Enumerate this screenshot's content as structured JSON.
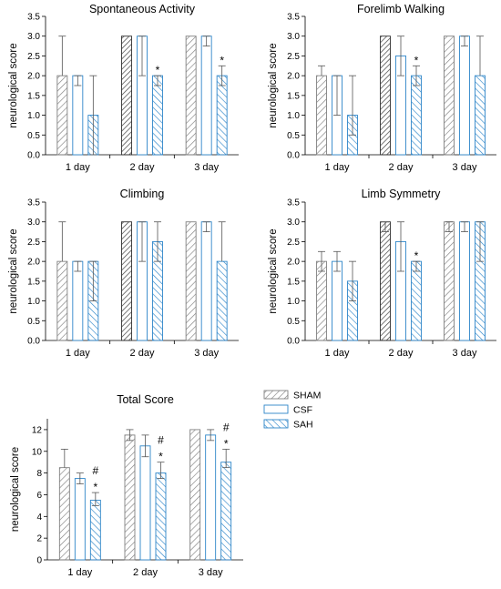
{
  "legend": {
    "placement": "right-of-bottom-chart",
    "entries": [
      {
        "name": "SHAM",
        "color": "#808080",
        "pattern": "back-diagonal"
      },
      {
        "name": "CSF",
        "color": "#2e86c9",
        "pattern": "none"
      },
      {
        "name": "SAH",
        "color": "#2e86c9",
        "pattern": "forward-diagonal"
      }
    ]
  },
  "chart_data": [
    {
      "type": "bar",
      "title": "Spontaneous Activity",
      "ylabel": "neurological score",
      "ylim": [
        0,
        3.5
      ],
      "yticks": [
        "0.0",
        "0.5",
        "1.0",
        "1.5",
        "2.0",
        "2.5",
        "3.0",
        "3.5"
      ],
      "categories": [
        "1 day",
        "2 day",
        "3 day"
      ],
      "series": [
        {
          "name": "SHAM",
          "values": [
            2,
            3,
            3
          ],
          "err_low": [
            2,
            3,
            3
          ],
          "err_high": [
            3,
            3,
            3
          ]
        },
        {
          "name": "CSF",
          "values": [
            2,
            3,
            3
          ],
          "err_low": [
            1.75,
            2,
            2.75
          ],
          "err_high": [
            2,
            3,
            3
          ]
        },
        {
          "name": "SAH",
          "values": [
            1,
            2,
            2
          ],
          "err_low": [
            0,
            1.75,
            1.75
          ],
          "err_high": [
            2,
            2,
            2.25
          ]
        }
      ],
      "annotations": [
        {
          "series": "SAH",
          "category": "2 day",
          "text": "*"
        },
        {
          "series": "SAH",
          "category": "3 day",
          "text": "*"
        }
      ]
    },
    {
      "type": "bar",
      "title": "Forelimb Walking",
      "ylabel": "neurological score",
      "ylim": [
        0,
        3.5
      ],
      "yticks": [
        "0.0",
        "0.5",
        "1.0",
        "1.5",
        "2.0",
        "2.5",
        "3.0",
        "3.5"
      ],
      "categories": [
        "1 day",
        "2 day",
        "3 day"
      ],
      "series": [
        {
          "name": "SHAM",
          "values": [
            2,
            3,
            3
          ],
          "err_low": [
            2,
            3,
            3
          ],
          "err_high": [
            2.25,
            3,
            3
          ]
        },
        {
          "name": "CSF",
          "values": [
            2,
            2.5,
            3
          ],
          "err_low": [
            1,
            2,
            2.75
          ],
          "err_high": [
            2,
            3,
            3
          ]
        },
        {
          "name": "SAH",
          "values": [
            1,
            2,
            2
          ],
          "err_low": [
            0.5,
            1.75,
            2
          ],
          "err_high": [
            2,
            2.25,
            3
          ]
        }
      ],
      "annotations": [
        {
          "series": "SAH",
          "category": "2 day",
          "text": "*"
        }
      ]
    },
    {
      "type": "bar",
      "title": "Climbing",
      "ylabel": "neurological score",
      "ylim": [
        0,
        3.5
      ],
      "yticks": [
        "0.0",
        "0.5",
        "1.0",
        "1.5",
        "2.0",
        "2.5",
        "3.0",
        "3.5"
      ],
      "categories": [
        "1 day",
        "2 day",
        "3 day"
      ],
      "series": [
        {
          "name": "SHAM",
          "values": [
            2,
            3,
            3
          ],
          "err_low": [
            2,
            3,
            3
          ],
          "err_high": [
            3,
            3,
            3
          ]
        },
        {
          "name": "CSF",
          "values": [
            2,
            3,
            3
          ],
          "err_low": [
            1.75,
            2,
            2.75
          ],
          "err_high": [
            2,
            3,
            3
          ]
        },
        {
          "name": "SAH",
          "values": [
            2,
            2.5,
            2
          ],
          "err_low": [
            1,
            2,
            2
          ],
          "err_high": [
            2,
            3,
            3
          ]
        }
      ],
      "annotations": []
    },
    {
      "type": "bar",
      "title": "Limb Symmetry",
      "ylabel": "neurological score",
      "ylim": [
        0,
        3.5
      ],
      "yticks": [
        "0.0",
        "0.5",
        "1.0",
        "1.5",
        "2.0",
        "2.5",
        "3.0",
        "3.5"
      ],
      "categories": [
        "1 day",
        "2 day",
        "3 day"
      ],
      "series": [
        {
          "name": "SHAM",
          "values": [
            2,
            3,
            3
          ],
          "err_low": [
            1.75,
            2.75,
            2.75
          ],
          "err_high": [
            2.25,
            3,
            3
          ]
        },
        {
          "name": "CSF",
          "values": [
            2,
            2.5,
            3
          ],
          "err_low": [
            1.75,
            1.75,
            2.75
          ],
          "err_high": [
            2.25,
            3,
            3
          ]
        },
        {
          "name": "SAH",
          "values": [
            1.5,
            2,
            3
          ],
          "err_low": [
            1,
            1.75,
            2
          ],
          "err_high": [
            2,
            2,
            3
          ]
        }
      ],
      "annotations": [
        {
          "series": "SAH",
          "category": "2 day",
          "text": "*"
        }
      ]
    },
    {
      "type": "bar",
      "title": "Total Score",
      "ylabel": "neurological score",
      "ylim": [
        0,
        13
      ],
      "yticks": [
        "0",
        "2",
        "4",
        "6",
        "8",
        "10",
        "12"
      ],
      "categories": [
        "1 day",
        "2 day",
        "3 day"
      ],
      "series": [
        {
          "name": "SHAM",
          "values": [
            8.5,
            11.5,
            12
          ],
          "err_low": [
            8.5,
            11,
            12
          ],
          "err_high": [
            10.2,
            12,
            12
          ]
        },
        {
          "name": "CSF",
          "values": [
            7.5,
            10.5,
            11.5
          ],
          "err_low": [
            7,
            9.5,
            11
          ],
          "err_high": [
            8,
            11.5,
            12
          ]
        },
        {
          "name": "SAH",
          "values": [
            5.5,
            8,
            9
          ],
          "err_low": [
            5,
            7.5,
            8.5
          ],
          "err_high": [
            6.2,
            9,
            10.2
          ]
        }
      ],
      "annotations": [
        {
          "series": "SAH",
          "category": "1 day",
          "text": "*"
        },
        {
          "series": "SAH",
          "category": "1 day",
          "text": "#"
        },
        {
          "series": "SAH",
          "category": "2 day",
          "text": "*"
        },
        {
          "series": "SAH",
          "category": "2 day",
          "text": "#"
        },
        {
          "series": "SAH",
          "category": "3 day",
          "text": "*"
        },
        {
          "series": "SAH",
          "category": "3 day",
          "text": "#"
        }
      ]
    }
  ]
}
